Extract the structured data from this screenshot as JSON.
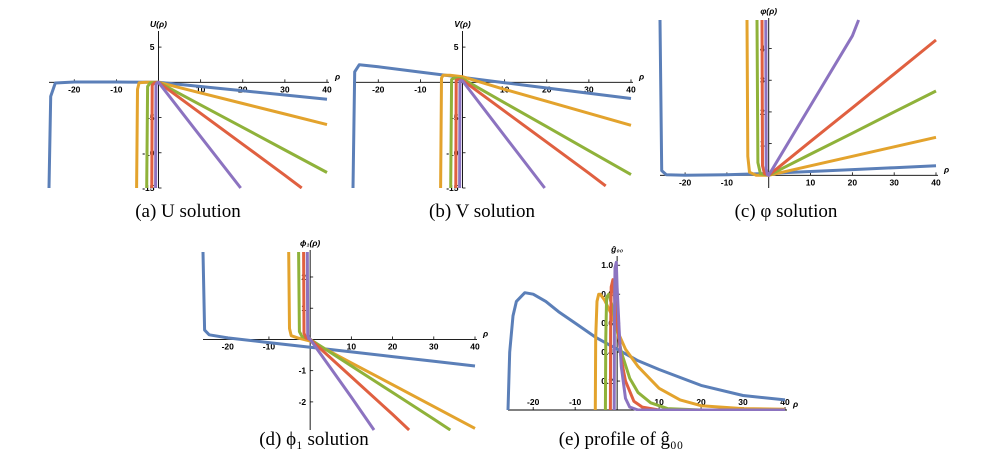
{
  "colors": {
    "blue": "#5b7fb8",
    "orange": "#e3a32d",
    "green": "#8fb23a",
    "red": "#e06040",
    "purple": "#8c73c0"
  },
  "chart_data": [
    {
      "id": "a",
      "type": "line",
      "caption": "(a) U solution",
      "ylabel": "U(ρ)",
      "xlabel": "ρ",
      "xlim": [
        -26,
        40
      ],
      "ylim": [
        -15,
        7
      ],
      "xticks": [
        -20,
        -10,
        10,
        20,
        30,
        40
      ],
      "yticks": [
        5,
        -5,
        -10,
        -15
      ],
      "xticks_at_top": false,
      "series": [
        {
          "color": "blue",
          "x": [
            -26,
            -25.6,
            -24.5,
            -20,
            -10,
            0,
            10,
            20,
            30,
            40
          ],
          "y": [
            -15,
            -2.0,
            -0.1,
            0.05,
            0.05,
            0,
            -0.6,
            -1.2,
            -1.8,
            -2.4
          ]
        },
        {
          "color": "orange",
          "x": [
            -5.2,
            -5.0,
            -4.6,
            -3,
            0,
            10,
            20,
            30,
            40
          ],
          "y": [
            -15,
            -1.0,
            -0.05,
            0,
            0,
            -1.5,
            -3.0,
            -4.5,
            -6.0
          ]
        },
        {
          "color": "green",
          "x": [
            -2.8,
            -2.6,
            -2,
            0,
            10,
            20,
            30,
            40
          ],
          "y": [
            -15,
            -0.6,
            -0.1,
            0,
            -3.2,
            -6.4,
            -9.6,
            -12.8
          ]
        },
        {
          "color": "red",
          "x": [
            -1.6,
            -1.5,
            -1,
            0,
            10,
            20,
            30,
            34
          ],
          "y": [
            -15,
            -0.4,
            -0.1,
            0,
            -4.4,
            -8.8,
            -13.2,
            -15
          ]
        },
        {
          "color": "purple",
          "x": [
            -0.7,
            -0.6,
            -0.3,
            0,
            10,
            19.5
          ],
          "y": [
            -15,
            -0.3,
            -0.05,
            0,
            -7.7,
            -15
          ]
        }
      ]
    },
    {
      "id": "b",
      "type": "line",
      "caption": "(b) V solution",
      "ylabel": "V(ρ)",
      "xlabel": "ρ",
      "xlim": [
        -26,
        40
      ],
      "ylim": [
        -15,
        7
      ],
      "xticks": [
        -20,
        -10,
        10,
        20,
        30,
        40
      ],
      "yticks": [
        5,
        -5,
        -10,
        -15
      ],
      "xticks_at_top": false,
      "series": [
        {
          "color": "blue",
          "x": [
            -26,
            -25.6,
            -24.5,
            -20,
            -10,
            0,
            10,
            20,
            30,
            40
          ],
          "y": [
            -15,
            1.5,
            2.5,
            2.2,
            1.45,
            0.7,
            -0.05,
            -0.8,
            -1.55,
            -2.3
          ]
        },
        {
          "color": "orange",
          "x": [
            -5.2,
            -5.0,
            -4.6,
            -3,
            0,
            10,
            20,
            30,
            40
          ],
          "y": [
            -15,
            0.6,
            1.0,
            1.0,
            0.8,
            -1.0,
            -2.7,
            -4.4,
            -6.1
          ]
        },
        {
          "color": "green",
          "x": [
            -2.8,
            -2.6,
            -2,
            0,
            10,
            20,
            30,
            40
          ],
          "y": [
            -15,
            0.4,
            0.6,
            0.5,
            -2.9,
            -6.3,
            -9.7,
            -13.1
          ]
        },
        {
          "color": "red",
          "x": [
            -1.6,
            -1.5,
            -1,
            0,
            10,
            20,
            30,
            34
          ],
          "y": [
            -15,
            0.3,
            0.4,
            0.3,
            -4.1,
            -8.5,
            -12.9,
            -14.7
          ]
        },
        {
          "color": "purple",
          "x": [
            -0.7,
            -0.6,
            -0.3,
            0,
            10,
            19.5
          ],
          "y": [
            -15,
            0.2,
            0.25,
            0.2,
            -7.6,
            -15
          ]
        }
      ]
    },
    {
      "id": "c",
      "type": "line",
      "caption": "(c) φ solution",
      "ylabel": "φ(ρ)",
      "xlabel": "ρ",
      "xlim": [
        -26,
        40
      ],
      "ylim": [
        -0.4,
        4.9
      ],
      "xticks": [
        -20,
        -10,
        10,
        20,
        30,
        40
      ],
      "yticks": [
        1,
        2,
        3,
        4
      ],
      "xticks_at_top": false,
      "series": [
        {
          "color": "blue",
          "x": [
            -26,
            -25.6,
            -24.5,
            -20,
            -10,
            0,
            10,
            20,
            30,
            40
          ],
          "y": [
            4.9,
            0.15,
            0.02,
            0,
            0.02,
            0.06,
            0.12,
            0.18,
            0.24,
            0.3
          ]
        },
        {
          "color": "orange",
          "x": [
            -5.2,
            -5.0,
            -4.6,
            -3,
            0,
            10,
            20,
            30,
            40
          ],
          "y": [
            4.9,
            0.6,
            0.1,
            0,
            0,
            0.3,
            0.6,
            0.9,
            1.2
          ]
        },
        {
          "color": "green",
          "x": [
            -2.8,
            -2.6,
            -2,
            0,
            10,
            20,
            30,
            40
          ],
          "y": [
            4.9,
            0.4,
            0.05,
            0,
            0.67,
            1.33,
            2.0,
            2.66
          ]
        },
        {
          "color": "red",
          "x": [
            -1.6,
            -1.5,
            -1,
            0,
            10,
            20,
            30,
            40
          ],
          "y": [
            4.9,
            0.3,
            0.05,
            0,
            1.07,
            2.13,
            3.2,
            4.27
          ]
        },
        {
          "color": "purple",
          "x": [
            -0.7,
            -0.6,
            -0.3,
            0,
            10,
            20,
            21.5
          ],
          "y": [
            4.9,
            0.2,
            0.02,
            0,
            2.2,
            4.4,
            4.9
          ]
        }
      ]
    },
    {
      "id": "d",
      "type": "line",
      "caption": "(d) ϕ₁ solution",
      "ylabel": "ϕ₁(ρ)",
      "xlabel": "ρ",
      "xlim": [
        -26,
        40
      ],
      "ylim": [
        -2.9,
        2.8
      ],
      "xticks": [
        -20,
        -10,
        10,
        20,
        30,
        40
      ],
      "yticks": [
        2,
        1,
        -1,
        -2
      ],
      "xticks_at_top": false,
      "series": [
        {
          "color": "blue",
          "x": [
            -26,
            -25.6,
            -24.5,
            -20,
            -10,
            0,
            10,
            20,
            30,
            40
          ],
          "y": [
            2.8,
            0.3,
            0.15,
            0.05,
            -0.1,
            -0.25,
            -0.4,
            -0.55,
            -0.7,
            -0.85
          ]
        },
        {
          "color": "orange",
          "x": [
            -5.2,
            -5.0,
            -4.6,
            -3,
            0,
            10,
            20,
            30,
            40
          ],
          "y": [
            2.8,
            0.35,
            0.12,
            0.05,
            -0.05,
            -0.75,
            -1.45,
            -2.15,
            -2.85
          ]
        },
        {
          "color": "green",
          "x": [
            -2.8,
            -2.6,
            -2,
            0,
            10,
            20,
            30,
            34
          ],
          "y": [
            2.8,
            0.25,
            0.1,
            0,
            -0.85,
            -1.7,
            -2.55,
            -2.9
          ]
        },
        {
          "color": "red",
          "x": [
            -1.6,
            -1.5,
            -1,
            0,
            10,
            20,
            24
          ],
          "y": [
            2.8,
            0.2,
            0.05,
            0,
            -1.2,
            -2.4,
            -2.9
          ]
        },
        {
          "color": "purple",
          "x": [
            -0.7,
            -0.6,
            -0.3,
            0,
            10,
            15.5
          ],
          "y": [
            2.8,
            0.15,
            0.02,
            0,
            -1.85,
            -2.9
          ]
        }
      ]
    },
    {
      "id": "e",
      "type": "line",
      "caption": "(e) profile of ĝ₀₀",
      "ylabel": "ĝ₀₀",
      "xlabel": "ρ",
      "xlim": [
        -26,
        40
      ],
      "ylim": [
        0,
        1.05
      ],
      "xticks": [
        -20,
        -10,
        10,
        20,
        30,
        40
      ],
      "yticks": [
        0.2,
        0.4,
        0.6,
        0.8,
        1.0
      ],
      "xticks_at_top": true,
      "series": [
        {
          "color": "blue",
          "x": [
            -26,
            -25.6,
            -24.8,
            -24,
            -22,
            -20,
            -17,
            -14,
            -10,
            -5,
            0,
            5,
            10,
            20,
            30,
            40
          ],
          "y": [
            0,
            0.4,
            0.65,
            0.75,
            0.81,
            0.8,
            0.75,
            0.68,
            0.6,
            0.5,
            0.42,
            0.34,
            0.28,
            0.17,
            0.1,
            0.07
          ]
        },
        {
          "color": "orange",
          "x": [
            -5.2,
            -5.1,
            -4.8,
            -4.4,
            -4,
            -3,
            -2,
            -1,
            0,
            2,
            5,
            10,
            15,
            20,
            30,
            40
          ],
          "y": [
            0,
            0.5,
            0.75,
            0.8,
            0.8,
            0.76,
            0.7,
            0.64,
            0.55,
            0.42,
            0.3,
            0.15,
            0.07,
            0.03,
            0.01,
            0.005
          ]
        },
        {
          "color": "green",
          "x": [
            -2.8,
            -2.7,
            -2.5,
            -2,
            -1,
            0,
            1,
            3,
            5,
            8,
            12,
            20,
            40
          ],
          "y": [
            0,
            0.5,
            0.78,
            0.8,
            0.7,
            0.55,
            0.4,
            0.22,
            0.12,
            0.05,
            0.01,
            0,
            0
          ]
        },
        {
          "color": "red",
          "x": [
            -1.6,
            -1.55,
            -1.4,
            -1,
            0,
            1,
            2,
            4,
            6,
            10,
            20,
            40
          ],
          "y": [
            0,
            0.55,
            0.85,
            0.9,
            0.6,
            0.35,
            0.2,
            0.06,
            0.02,
            0,
            0,
            0
          ]
        },
        {
          "color": "purple",
          "x": [
            -0.7,
            -0.65,
            -0.5,
            -0.2,
            0,
            0.5,
            1,
            2,
            3,
            5,
            10,
            40
          ],
          "y": [
            0,
            0.6,
            0.98,
            1.02,
            0.85,
            0.55,
            0.3,
            0.08,
            0.02,
            0,
            0,
            0
          ]
        }
      ]
    }
  ]
}
